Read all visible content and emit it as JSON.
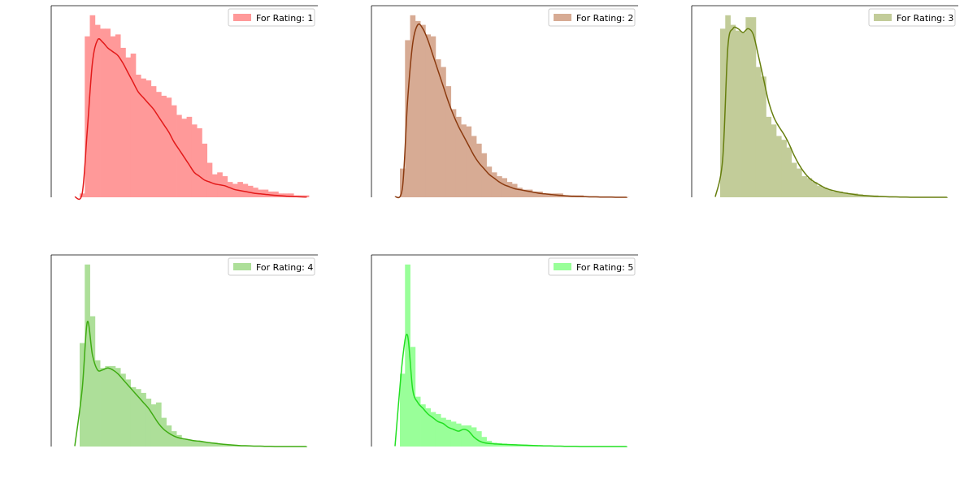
{
  "chart_data": [
    {
      "type": "bar",
      "legend": "For Rating: 1",
      "legend_position": "top-right",
      "bar_color": "#ff9999",
      "line_color": "#e31a1a",
      "axes_visible": "left-and-top-spines-only",
      "values": [
        0.02,
        0.84,
        0.95,
        0.9,
        0.88,
        0.88,
        0.84,
        0.85,
        0.78,
        0.73,
        0.75,
        0.64,
        0.62,
        0.61,
        0.58,
        0.55,
        0.53,
        0.52,
        0.48,
        0.43,
        0.41,
        0.42,
        0.38,
        0.36,
        0.28,
        0.18,
        0.12,
        0.13,
        0.11,
        0.08,
        0.07,
        0.08,
        0.07,
        0.06,
        0.05,
        0.04,
        0.04,
        0.03,
        0.03,
        0.02,
        0.02,
        0.02,
        0.01,
        0.01,
        0.01
      ],
      "kde": [
        0.02,
        0.35,
        0.7,
        0.82,
        0.81,
        0.78,
        0.76,
        0.74,
        0.7,
        0.65,
        0.6,
        0.55,
        0.52,
        0.49,
        0.46,
        0.42,
        0.38,
        0.34,
        0.29,
        0.25,
        0.21,
        0.17,
        0.13,
        0.11,
        0.09,
        0.08,
        0.07,
        0.065,
        0.06,
        0.05,
        0.04,
        0.035,
        0.03,
        0.025,
        0.02,
        0.018,
        0.015,
        0.012,
        0.01,
        0.008,
        0.006,
        0.004,
        0.003,
        0.002,
        0.001
      ]
    },
    {
      "type": "bar",
      "legend": "For Rating: 2",
      "legend_position": "top-right",
      "bar_color": "#d7ab94",
      "line_color": "#8b3a0f",
      "axes_visible": "left-and-top-spines-only",
      "values": [
        0.15,
        0.82,
        0.95,
        0.92,
        0.9,
        0.85,
        0.84,
        0.72,
        0.68,
        0.58,
        0.46,
        0.42,
        0.38,
        0.37,
        0.32,
        0.28,
        0.23,
        0.16,
        0.13,
        0.11,
        0.1,
        0.08,
        0.07,
        0.05,
        0.04,
        0.04,
        0.03,
        0.03,
        0.02,
        0.02,
        0.02,
        0.02,
        0.01,
        0.01,
        0.01,
        0.01,
        0.005,
        0.005,
        0.005,
        0.002,
        0.002,
        0.001,
        0.001,
        0.001,
        0.001
      ],
      "kde": [
        0.05,
        0.5,
        0.8,
        0.9,
        0.88,
        0.82,
        0.74,
        0.66,
        0.58,
        0.5,
        0.43,
        0.37,
        0.32,
        0.27,
        0.22,
        0.18,
        0.15,
        0.12,
        0.1,
        0.08,
        0.065,
        0.055,
        0.045,
        0.04,
        0.035,
        0.03,
        0.025,
        0.02,
        0.018,
        0.015,
        0.012,
        0.01,
        0.008,
        0.006,
        0.005,
        0.004,
        0.003,
        0.002,
        0.002,
        0.001,
        0.001,
        0.001,
        0.0,
        0.0,
        0.0
      ]
    },
    {
      "type": "bar",
      "legend": "For Rating: 3",
      "legend_position": "top-right",
      "bar_color": "#c2cc99",
      "line_color": "#667e0d",
      "axes_visible": "left-and-top-spines-only",
      "values": [
        0.88,
        0.95,
        0.9,
        0.87,
        0.86,
        0.94,
        0.94,
        0.68,
        0.63,
        0.42,
        0.38,
        0.32,
        0.3,
        0.26,
        0.18,
        0.15,
        0.11,
        0.1,
        0.08,
        0.06,
        0.05,
        0.04,
        0.03,
        0.03,
        0.025,
        0.02,
        0.02,
        0.015,
        0.01,
        0.01,
        0.01,
        0.005,
        0.005,
        0.005,
        0.003,
        0.002,
        0.002,
        0.001,
        0.001,
        0.001,
        0.0,
        0.0,
        0.0,
        0.0,
        0.0
      ],
      "kde": [
        0.2,
        0.78,
        0.88,
        0.88,
        0.86,
        0.88,
        0.85,
        0.74,
        0.62,
        0.5,
        0.42,
        0.37,
        0.33,
        0.28,
        0.22,
        0.17,
        0.13,
        0.1,
        0.08,
        0.065,
        0.05,
        0.04,
        0.033,
        0.027,
        0.022,
        0.018,
        0.014,
        0.011,
        0.009,
        0.007,
        0.005,
        0.004,
        0.003,
        0.002,
        0.002,
        0.001,
        0.001,
        0.0,
        0.0,
        0.0,
        0.0,
        0.0,
        0.0,
        0.0,
        0.0
      ]
    },
    {
      "type": "bar",
      "legend": "For Rating: 4",
      "legend_position": "top-right",
      "bar_color": "#addf99",
      "line_color": "#3fab12",
      "axes_visible": "left-and-top-spines-only",
      "values": [
        0.54,
        0.95,
        0.68,
        0.45,
        0.41,
        0.42,
        0.42,
        0.41,
        0.38,
        0.35,
        0.31,
        0.3,
        0.28,
        0.25,
        0.22,
        0.23,
        0.15,
        0.11,
        0.08,
        0.06,
        0.04,
        0.035,
        0.03,
        0.03,
        0.025,
        0.02,
        0.02,
        0.015,
        0.01,
        0.01,
        0.008,
        0.006,
        0.005,
        0.004,
        0.003,
        0.002,
        0.002,
        0.001,
        0.001,
        0.001,
        0.0,
        0.0,
        0.0,
        0.0,
        0.0
      ],
      "kde": [
        0.3,
        0.65,
        0.48,
        0.4,
        0.4,
        0.41,
        0.4,
        0.38,
        0.35,
        0.32,
        0.29,
        0.26,
        0.23,
        0.2,
        0.16,
        0.12,
        0.09,
        0.07,
        0.055,
        0.045,
        0.04,
        0.035,
        0.03,
        0.028,
        0.024,
        0.02,
        0.017,
        0.014,
        0.011,
        0.009,
        0.007,
        0.005,
        0.004,
        0.003,
        0.002,
        0.002,
        0.001,
        0.001,
        0.0,
        0.0,
        0.0,
        0.0,
        0.0,
        0.0,
        0.0
      ]
    },
    {
      "type": "bar",
      "legend": "For Rating: 5",
      "legend_position": "top-right",
      "bar_color": "#99ff99",
      "line_color": "#22e022",
      "axes_visible": "left-and-top-spines-only",
      "values": [
        0.38,
        0.95,
        0.52,
        0.26,
        0.22,
        0.2,
        0.18,
        0.17,
        0.15,
        0.14,
        0.13,
        0.12,
        0.11,
        0.11,
        0.1,
        0.08,
        0.05,
        0.03,
        0.02,
        0.018,
        0.015,
        0.013,
        0.012,
        0.01,
        0.01,
        0.009,
        0.008,
        0.007,
        0.006,
        0.005,
        0.004,
        0.003,
        0.003,
        0.002,
        0.002,
        0.001,
        0.001,
        0.001,
        0.0,
        0.0,
        0.0,
        0.0,
        0.0,
        0.0,
        0.0
      ],
      "kde": [
        0.45,
        0.58,
        0.3,
        0.23,
        0.2,
        0.17,
        0.15,
        0.13,
        0.12,
        0.1,
        0.09,
        0.08,
        0.09,
        0.08,
        0.05,
        0.03,
        0.02,
        0.016,
        0.014,
        0.012,
        0.011,
        0.01,
        0.009,
        0.008,
        0.007,
        0.006,
        0.005,
        0.004,
        0.003,
        0.003,
        0.002,
        0.002,
        0.001,
        0.001,
        0.001,
        0.0,
        0.0,
        0.0,
        0.0,
        0.0,
        0.0,
        0.0,
        0.0,
        0.0,
        0.0
      ]
    }
  ]
}
